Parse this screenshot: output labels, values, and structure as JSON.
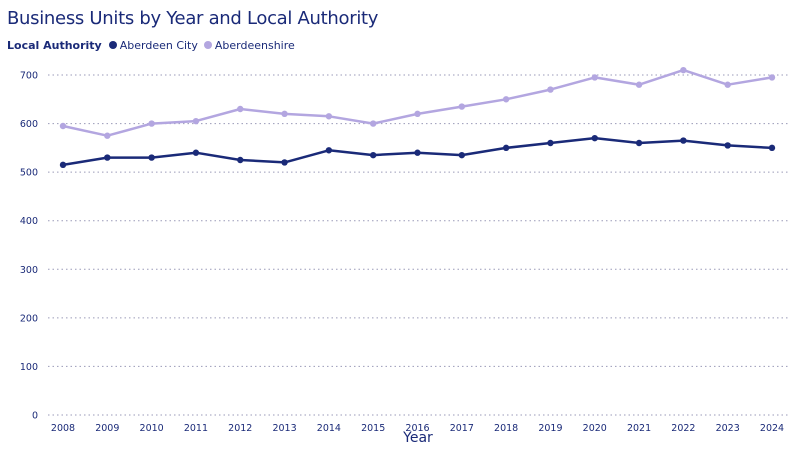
{
  "chart_data": {
    "type": "line",
    "title": "Business Units by Year and Local Authority",
    "legend_title": "Local Authority",
    "xlabel": "Year",
    "ylabel": "",
    "x": [
      "2008",
      "2009",
      "2010",
      "2011",
      "2012",
      "2013",
      "2014",
      "2015",
      "2016",
      "2017",
      "2018",
      "2019",
      "2020",
      "2021",
      "2022",
      "2023",
      "2024"
    ],
    "ylim": [
      0,
      700
    ],
    "yticks": [
      0,
      100,
      200,
      300,
      400,
      500,
      600,
      700
    ],
    "grid": true,
    "legend_position": "top-left",
    "series": [
      {
        "name": "Aberdeen City",
        "color": "#1a2a78",
        "values": [
          515,
          530,
          530,
          540,
          525,
          520,
          545,
          535,
          540,
          535,
          550,
          560,
          570,
          560,
          565,
          555,
          550
        ]
      },
      {
        "name": "Aberdeenshire",
        "color": "#b3a6e0",
        "values": [
          595,
          575,
          600,
          605,
          630,
          620,
          615,
          600,
          620,
          635,
          650,
          670,
          695,
          680,
          710,
          680,
          695
        ]
      }
    ]
  }
}
